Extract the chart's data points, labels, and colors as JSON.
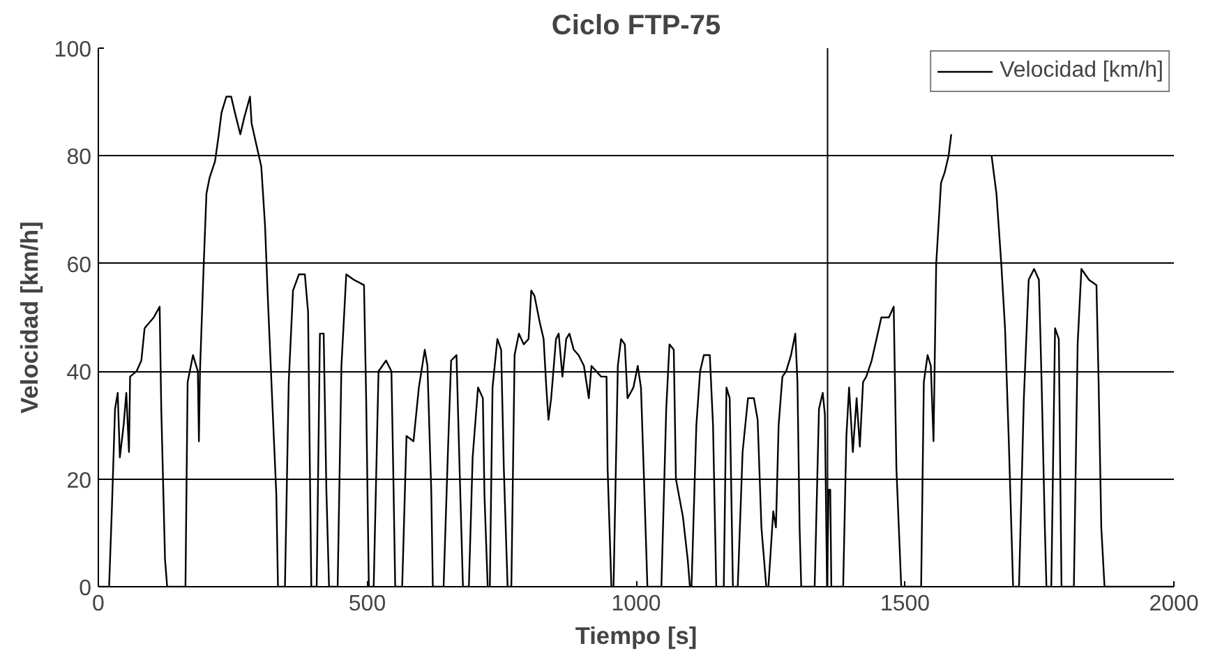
{
  "chart_data": {
    "type": "line",
    "title": "Ciclo FTP-75",
    "xlabel": "Tiempo [s]",
    "ylabel": "Velocidad [km/h]",
    "xlim": [
      0,
      2000
    ],
    "xticks": [
      0,
      500,
      1000,
      1500,
      2000
    ],
    "ylim": [
      0,
      100
    ],
    "yticks": [
      0,
      20,
      40,
      60,
      80,
      100
    ],
    "grid": "y",
    "legend": "top right",
    "ref_lines": [
      {
        "axis": "x",
        "value": 1356,
        "color": "#000000"
      }
    ],
    "series": [
      {
        "name": "Velocidad [km/h]",
        "color": "#000000",
        "x": [
          0,
          20,
          25,
          31,
          36,
          40,
          47,
          52,
          57,
          59,
          71,
          80,
          86,
          103,
          114,
          117,
          124,
          128,
          162,
          166,
          176,
          185,
          187,
          189,
          196,
          201,
          207,
          217,
          224,
          229,
          238,
          247,
          254,
          264,
          271,
          282,
          285,
          294,
          303,
          310,
          315,
          324,
          331,
          334,
          347,
          354,
          362,
          373,
          384,
          390,
          393,
          396,
          406,
          412,
          419,
          424,
          429,
          445,
          452,
          461,
          475,
          494,
          498,
          503,
          512,
          521,
          535,
          545,
          549,
          552,
          565,
          573,
          586,
          596,
          607,
          612,
          619,
          622,
          642,
          650,
          656,
          666,
          672,
          678,
          689,
          696,
          706,
          715,
          718,
          724,
          728,
          733,
          742,
          749,
          754,
          761,
          768,
          774,
          782,
          791,
          800,
          805,
          811,
          821,
          828,
          833,
          837,
          842,
          851,
          856,
          863,
          870,
          876,
          884,
          893,
          903,
          912,
          917,
          926,
          935,
          945,
          947,
          954,
          958,
          966,
          972,
          979,
          984,
          995,
          1003,
          1009,
          1014,
          1021,
          1047,
          1056,
          1062,
          1070,
          1074,
          1087,
          1096,
          1100,
          1103,
          1112,
          1119,
          1126,
          1137,
          1143,
          1149,
          1163,
          1168,
          1174,
          1180,
          1189,
          1198,
          1208,
          1219,
          1226,
          1233,
          1242,
          1246,
          1255,
          1260,
          1265,
          1272,
          1279,
          1288,
          1296,
          1300,
          1304,
          1307,
          1332,
          1340,
          1347,
          1351,
          1355,
          1358,
          1361,
          1363,
          1385,
          1391,
          1396,
          1403,
          1410,
          1416,
          1422,
          1428,
          1438,
          1447,
          1456,
          1470,
          1479,
          1484,
          1493,
          1530,
          1535,
          1542,
          1548,
          1553,
          1558,
          1567,
          1574,
          1581,
          1586,
          1620,
          1661,
          1670,
          1679,
          1686,
          1693,
          1701,
          1712,
          1721,
          1730,
          1740,
          1749,
          1754,
          1760,
          1763,
          1772,
          1779,
          1786,
          1791,
          1814,
          1821,
          1828,
          1842,
          1856,
          1860,
          1865,
          1871,
          2000
        ],
        "values": [
          0,
          0,
          14,
          33,
          36,
          24,
          30,
          36,
          25,
          39,
          40,
          42,
          48,
          50,
          52,
          33,
          5,
          0,
          0,
          38,
          43,
          40,
          27,
          40,
          60,
          73,
          76,
          79,
          84,
          88,
          91,
          91,
          88,
          84,
          87,
          91,
          86,
          82,
          78,
          67,
          54,
          33,
          17,
          0,
          0,
          38,
          55,
          58,
          58,
          51,
          25,
          0,
          0,
          47,
          47,
          18,
          0,
          0,
          41,
          58,
          57,
          56,
          35,
          0,
          0,
          40,
          42,
          40,
          18,
          0,
          0,
          28,
          27,
          37,
          44,
          41,
          18,
          0,
          0,
          25,
          42,
          43,
          21,
          0,
          0,
          24,
          37,
          35,
          17,
          0,
          0,
          37,
          46,
          44,
          22,
          0,
          0,
          43,
          47,
          45,
          46,
          55,
          54,
          49,
          46,
          37,
          31,
          35,
          46,
          47,
          39,
          46,
          47,
          44,
          43,
          41,
          35,
          41,
          40,
          39,
          39,
          22,
          0,
          0,
          41,
          46,
          45,
          35,
          37,
          41,
          37,
          22,
          0,
          0,
          33,
          45,
          44,
          20,
          13,
          5,
          0,
          0,
          30,
          40,
          43,
          43,
          30,
          0,
          0,
          37,
          35,
          0,
          0,
          25,
          35,
          35,
          31,
          11,
          0,
          0,
          14,
          11,
          30,
          39,
          40,
          43,
          47,
          38,
          11,
          0,
          0,
          33,
          36,
          32,
          0,
          18,
          18,
          0,
          0,
          28,
          37,
          25,
          35,
          26,
          38,
          39,
          42,
          46,
          50,
          50,
          52,
          22,
          0,
          0,
          38,
          43,
          41,
          27,
          60,
          75,
          77,
          80,
          84,
          null,
          80,
          73,
          60,
          48,
          27,
          0,
          0,
          35,
          57,
          59,
          57,
          38,
          11,
          0,
          0,
          48,
          46,
          0,
          0,
          45,
          59,
          57,
          56,
          38,
          11,
          0,
          0
        ]
      }
    ]
  }
}
